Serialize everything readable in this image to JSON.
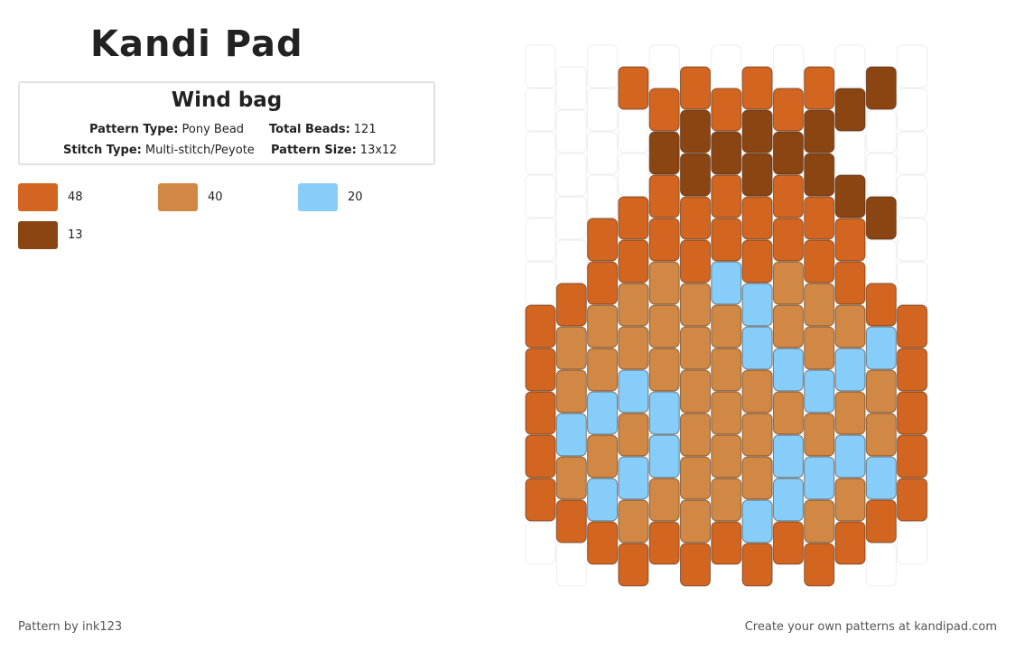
{
  "header": {
    "logo": "Kandi Pad"
  },
  "pattern": {
    "title": "Wind bag",
    "pattern_type_label": "Pattern Type:",
    "pattern_type": "Pony Bead",
    "total_beads_label": "Total Beads:",
    "total_beads": 121,
    "stitch_type_label": "Stitch Type:",
    "stitch_type": "Multi-stitch/Peyote",
    "pattern_size_label": "Pattern Size:",
    "pattern_size": "13x12"
  },
  "palette": [
    {
      "color": "#d2651f",
      "count": 48
    },
    {
      "color": "#d08844",
      "count": 40
    },
    {
      "color": "#87cdf9",
      "count": 20
    },
    {
      "color": "#8b4513",
      "count": 13
    }
  ],
  "beads": [
    [
      null,
      null,
      null,
      null,
      null,
      null,
      0,
      0,
      0,
      0,
      0,
      null
    ],
    [
      null,
      null,
      null,
      null,
      null,
      0,
      1,
      1,
      2,
      1,
      0,
      null
    ],
    [
      null,
      null,
      null,
      null,
      0,
      0,
      1,
      1,
      2,
      1,
      2,
      0
    ],
    [
      0,
      null,
      null,
      0,
      0,
      1,
      1,
      2,
      1,
      2,
      1,
      0
    ],
    [
      null,
      0,
      3,
      0,
      0,
      1,
      1,
      1,
      2,
      2,
      1,
      0
    ],
    [
      0,
      3,
      3,
      0,
      0,
      1,
      1,
      1,
      1,
      1,
      1,
      0
    ],
    [
      null,
      0,
      3,
      0,
      0,
      2,
      1,
      1,
      1,
      1,
      1,
      0
    ],
    [
      0,
      3,
      3,
      0,
      0,
      2,
      2,
      1,
      1,
      1,
      2,
      0
    ],
    [
      null,
      0,
      3,
      0,
      0,
      1,
      1,
      2,
      1,
      2,
      2,
      0
    ],
    [
      0,
      3,
      3,
      0,
      0,
      1,
      1,
      2,
      1,
      2,
      1,
      0
    ],
    [
      null,
      3,
      null,
      3,
      0,
      0,
      1,
      2,
      1,
      2,
      1,
      0
    ],
    [
      3,
      null,
      null,
      3,
      null,
      0,
      2,
      1,
      1,
      2,
      0,
      null
    ],
    [
      null,
      null,
      null,
      null,
      null,
      null,
      0,
      0,
      0,
      0,
      0,
      null
    ]
  ],
  "footer": {
    "left": "Pattern by ink123",
    "right": "Create your own patterns at kandipad.com"
  }
}
